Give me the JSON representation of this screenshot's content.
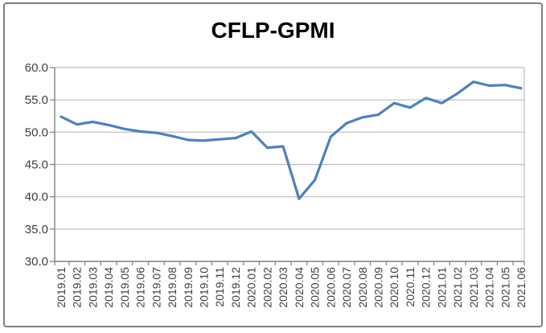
{
  "chart": {
    "title": "CFLP-GPMI"
  },
  "chart_data": {
    "type": "line",
    "title": "CFLP-GPMI",
    "series_name": "CFLP-GPMI",
    "categories": [
      "2019.01",
      "2019.02",
      "2019.03",
      "2019.04",
      "2019.05",
      "2019.06",
      "2019.07",
      "2019.08",
      "2019.09",
      "2019.10",
      "2019.11",
      "2019.12",
      "2020.01",
      "2020.02",
      "2020.03",
      "2020.04",
      "2020.05",
      "2020.06",
      "2020.07",
      "2020.08",
      "2020.09",
      "2020.10",
      "2020.11",
      "2020.12",
      "2021.01",
      "2021.02",
      "2021.03",
      "2021.04",
      "2021.05",
      "2021.06"
    ],
    "values": [
      52.4,
      51.2,
      51.6,
      51.1,
      50.5,
      50.1,
      49.9,
      49.4,
      48.8,
      48.7,
      48.9,
      49.1,
      50.1,
      47.6,
      47.8,
      39.7,
      42.6,
      49.3,
      51.4,
      52.3,
      52.7,
      54.5,
      53.8,
      55.3,
      54.5,
      56.0,
      57.8,
      57.2,
      57.3,
      56.8
    ],
    "xlabel": "",
    "ylabel": "",
    "ylim": [
      30,
      60
    ],
    "ytick_labels": [
      "30.0",
      "35.0",
      "40.0",
      "45.0",
      "50.0",
      "55.0",
      "60.0"
    ],
    "ytick_values": [
      30,
      35,
      40,
      45,
      50,
      55,
      60
    ],
    "grid": true,
    "legend": false,
    "x_labels_rotated_degrees": 90,
    "colors": {
      "line": "#4f81bd",
      "gridline": "#bdbdbd",
      "axis": "#808080",
      "tick_text": "#3f3f3f",
      "title_text": "#000000",
      "border": "#7f7f7f",
      "background": "#ffffff"
    }
  }
}
